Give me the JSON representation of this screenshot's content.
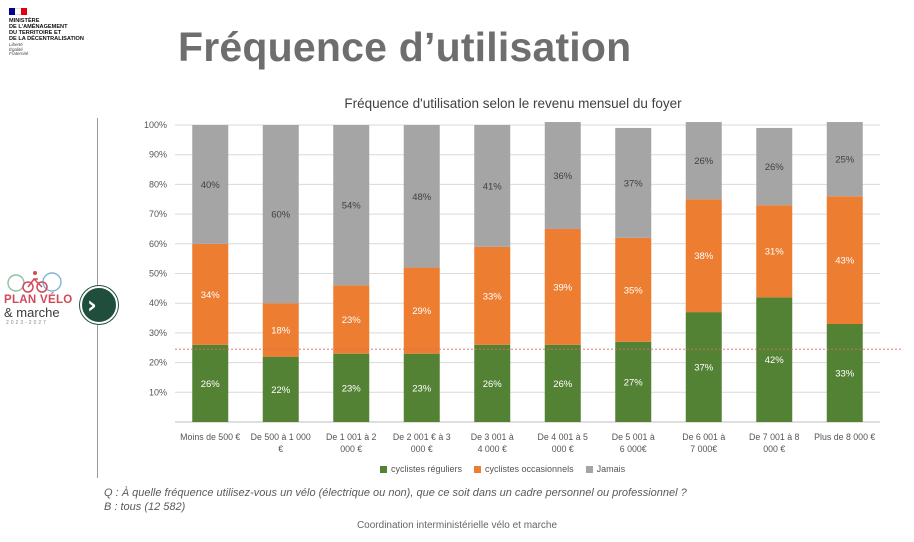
{
  "ministry": {
    "name": "Ministère\nde l'aménagement\ndu territoire et\nde la décentralisation",
    "motto": "Liberté\nÉgalité\nFraternité",
    "flag_colors": [
      "#000091",
      "#ffffff",
      "#e1000f"
    ]
  },
  "page_title": "Fréquence d’utilisation",
  "logo": {
    "line1": "PLAN VÉLO",
    "line2": "& marche",
    "line3": "2023-2027",
    "colors": {
      "red": "#d04a5a",
      "green": "#6aa84f",
      "blue": "#4a90c2"
    }
  },
  "nav": {
    "next_icon": "chevron-right-icon",
    "next_glyph": "›"
  },
  "chart_data": {
    "type": "bar",
    "stacked": true,
    "title": "Fréquence d'utilisation selon le revenu mensuel du foyer",
    "categories": [
      [
        "Moins de 500 €"
      ],
      [
        "De 500 à 1 000",
        "€"
      ],
      [
        "De 1 001 à 2",
        "000 €"
      ],
      [
        "De 2 001 € à 3",
        "000 €"
      ],
      [
        "De 3 001 à",
        "4 000 €"
      ],
      [
        "De 4 001 à 5",
        "000 €"
      ],
      [
        "De 5 001 à",
        "6 000€"
      ],
      [
        "De 6 001 à",
        "7 000€"
      ],
      [
        "De 7 001 à 8",
        "000 €"
      ],
      [
        "Plus de 8 000 €"
      ]
    ],
    "series": [
      {
        "name": "cyclistes réguliers",
        "color": "#548235",
        "values": [
          26,
          22,
          23,
          23,
          26,
          26,
          27,
          37,
          42,
          33
        ],
        "labels": [
          "26%",
          "22%",
          "23%",
          "23%",
          "26%",
          "26%",
          "27%",
          "37%",
          "42%",
          "33%"
        ]
      },
      {
        "name": "cyclistes occasionnels",
        "color": "#ed7d31",
        "values": [
          34,
          18,
          23,
          29,
          33,
          39,
          35,
          38,
          31,
          43
        ],
        "labels": [
          "34%",
          "18%",
          "23%",
          "29%",
          "33%",
          "39%",
          "35%",
          "38%",
          "31%",
          "43%"
        ]
      },
      {
        "name": "Jamais",
        "color": "#a5a5a5",
        "values": [
          40,
          60,
          54,
          48,
          41,
          36,
          37,
          26,
          26,
          25
        ],
        "labels": [
          "40%",
          "60%",
          "54%",
          "48%",
          "41%",
          "36%",
          "37%",
          "26%",
          "26%",
          "25%"
        ]
      }
    ],
    "y_ticks": [
      "10%",
      "20%",
      "30%",
      "40%",
      "50%",
      "60%",
      "70%",
      "80%",
      "90%",
      "100%"
    ],
    "ylim": [
      0,
      100
    ],
    "reference_line": {
      "value": 24.5,
      "color": "#e06666",
      "style": "dashed"
    },
    "grid": true,
    "legend_position": "bottom",
    "xlabel": "",
    "ylabel": ""
  },
  "question": {
    "line1": "Q : À quelle fréquence utilisez-vous un vélo (électrique ou non), que ce soit dans un cadre personnel ou professionnel ?",
    "line2": "B : tous (12 582)"
  },
  "footer": "Coordination interministérielle vélo et marche"
}
